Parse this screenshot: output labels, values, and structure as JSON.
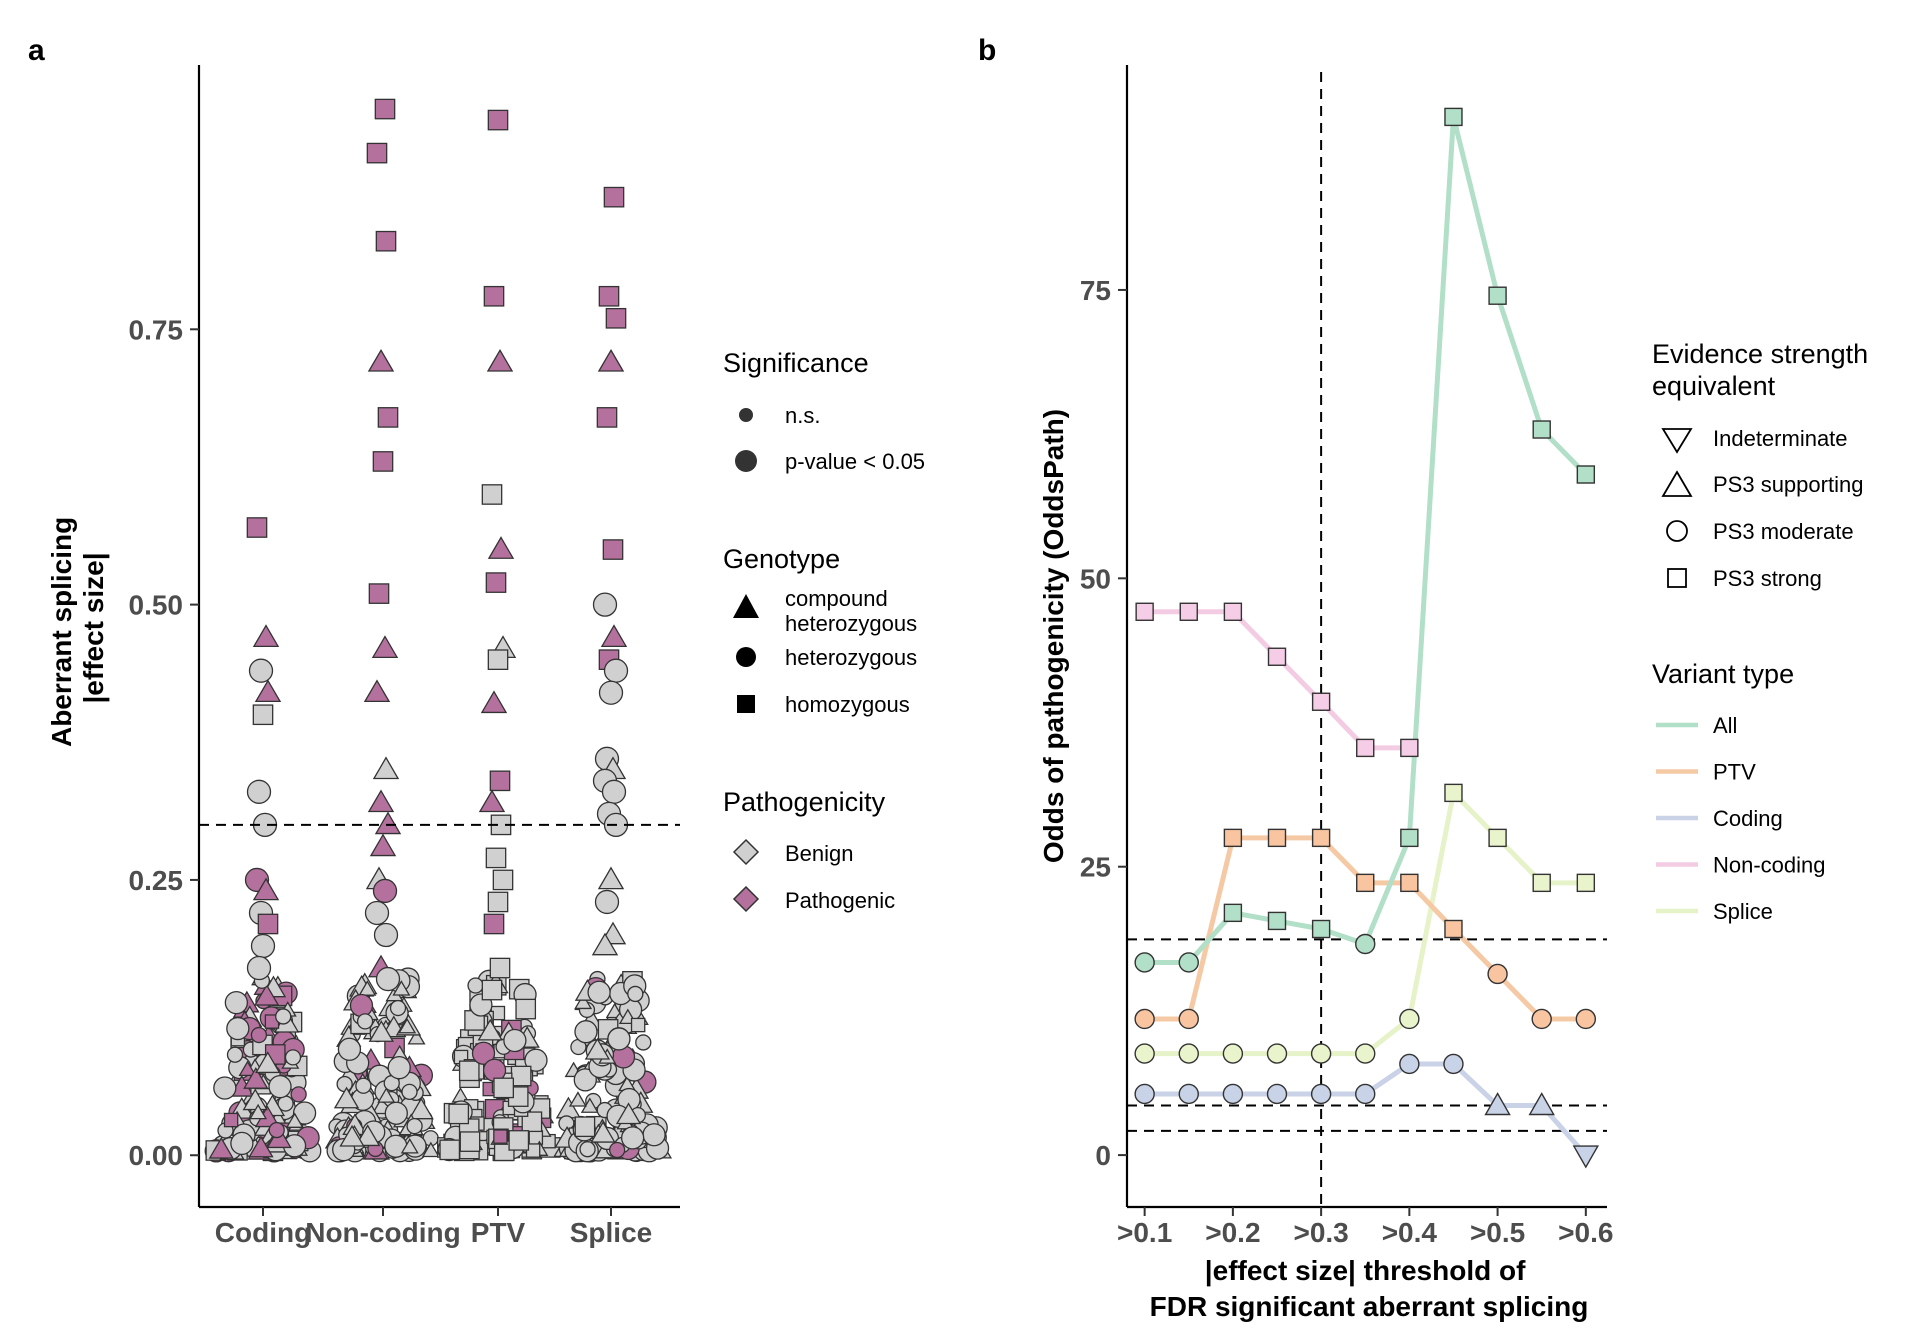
{
  "chart_data": [
    {
      "panel": "a",
      "type": "scatter",
      "ylabel": "Aberrant splicing\n|effect size|",
      "categories": [
        "Coding",
        "Non-coding",
        "PTV",
        "Splice"
      ],
      "yticks": [
        "0.00",
        "0.25",
        "0.50",
        "0.75"
      ],
      "ytick_values": [
        0,
        0.25,
        0.5,
        0.75
      ],
      "ylim": [
        -0.047,
        0.99
      ],
      "threshold": 0.3,
      "colors": {
        "benign": "#d0d0d0",
        "pathogenic": "#b5719e",
        "edge": "#333333"
      },
      "highlighted_points": [
        {
          "category": "Coding",
          "y": 0.57,
          "genotype": "homozygous",
          "pathogenicity": "Pathogenic"
        },
        {
          "category": "Coding",
          "y": 0.47,
          "genotype": "compound heterozygous",
          "pathogenicity": "Pathogenic"
        },
        {
          "category": "Coding",
          "y": 0.44,
          "genotype": "heterozygous",
          "pathogenicity": "Benign"
        },
        {
          "category": "Coding",
          "y": 0.42,
          "genotype": "compound heterozygous",
          "pathogenicity": "Pathogenic"
        },
        {
          "category": "Coding",
          "y": 0.4,
          "genotype": "homozygous",
          "pathogenicity": "Benign"
        },
        {
          "category": "Coding",
          "y": 0.33,
          "genotype": "heterozygous",
          "pathogenicity": "Benign"
        },
        {
          "category": "Coding",
          "y": 0.3,
          "genotype": "heterozygous",
          "pathogenicity": "Benign"
        },
        {
          "category": "Coding",
          "y": 0.25,
          "genotype": "heterozygous",
          "pathogenicity": "Pathogenic"
        },
        {
          "category": "Coding",
          "y": 0.24,
          "genotype": "compound heterozygous",
          "pathogenicity": "Pathogenic"
        },
        {
          "category": "Coding",
          "y": 0.22,
          "genotype": "heterozygous",
          "pathogenicity": "Benign"
        },
        {
          "category": "Coding",
          "y": 0.21,
          "genotype": "homozygous",
          "pathogenicity": "Pathogenic"
        },
        {
          "category": "Coding",
          "y": 0.19,
          "genotype": "heterozygous",
          "pathogenicity": "Benign"
        },
        {
          "category": "Coding",
          "y": 0.17,
          "genotype": "heterozygous",
          "pathogenicity": "Benign"
        },
        {
          "category": "Non-coding",
          "y": 0.95,
          "genotype": "homozygous",
          "pathogenicity": "Pathogenic"
        },
        {
          "category": "Non-coding",
          "y": 0.91,
          "genotype": "homozygous",
          "pathogenicity": "Pathogenic"
        },
        {
          "category": "Non-coding",
          "y": 0.83,
          "genotype": "homozygous",
          "pathogenicity": "Pathogenic"
        },
        {
          "category": "Non-coding",
          "y": 0.72,
          "genotype": "compound heterozygous",
          "pathogenicity": "Pathogenic"
        },
        {
          "category": "Non-coding",
          "y": 0.67,
          "genotype": "homozygous",
          "pathogenicity": "Pathogenic"
        },
        {
          "category": "Non-coding",
          "y": 0.63,
          "genotype": "homozygous",
          "pathogenicity": "Pathogenic"
        },
        {
          "category": "Non-coding",
          "y": 0.51,
          "genotype": "homozygous",
          "pathogenicity": "Pathogenic"
        },
        {
          "category": "Non-coding",
          "y": 0.46,
          "genotype": "compound heterozygous",
          "pathogenicity": "Pathogenic"
        },
        {
          "category": "Non-coding",
          "y": 0.42,
          "genotype": "compound heterozygous",
          "pathogenicity": "Pathogenic"
        },
        {
          "category": "Non-coding",
          "y": 0.35,
          "genotype": "compound heterozygous",
          "pathogenicity": "Benign"
        },
        {
          "category": "Non-coding",
          "y": 0.32,
          "genotype": "compound heterozygous",
          "pathogenicity": "Pathogenic"
        },
        {
          "category": "Non-coding",
          "y": 0.3,
          "genotype": "compound heterozygous",
          "pathogenicity": "Pathogenic"
        },
        {
          "category": "Non-coding",
          "y": 0.28,
          "genotype": "compound heterozygous",
          "pathogenicity": "Pathogenic"
        },
        {
          "category": "Non-coding",
          "y": 0.25,
          "genotype": "compound heterozygous",
          "pathogenicity": "Benign"
        },
        {
          "category": "Non-coding",
          "y": 0.24,
          "genotype": "heterozygous",
          "pathogenicity": "Pathogenic"
        },
        {
          "category": "Non-coding",
          "y": 0.22,
          "genotype": "heterozygous",
          "pathogenicity": "Benign"
        },
        {
          "category": "Non-coding",
          "y": 0.2,
          "genotype": "heterozygous",
          "pathogenicity": "Benign"
        },
        {
          "category": "Non-coding",
          "y": 0.17,
          "genotype": "compound heterozygous",
          "pathogenicity": "Pathogenic"
        },
        {
          "category": "Non-coding",
          "y": 0.16,
          "genotype": "heterozygous",
          "pathogenicity": "Benign"
        },
        {
          "category": "PTV",
          "y": 0.94,
          "genotype": "homozygous",
          "pathogenicity": "Pathogenic"
        },
        {
          "category": "PTV",
          "y": 0.78,
          "genotype": "homozygous",
          "pathogenicity": "Pathogenic"
        },
        {
          "category": "PTV",
          "y": 0.72,
          "genotype": "compound heterozygous",
          "pathogenicity": "Pathogenic"
        },
        {
          "category": "PTV",
          "y": 0.6,
          "genotype": "homozygous",
          "pathogenicity": "Benign"
        },
        {
          "category": "PTV",
          "y": 0.55,
          "genotype": "compound heterozygous",
          "pathogenicity": "Pathogenic"
        },
        {
          "category": "PTV",
          "y": 0.52,
          "genotype": "homozygous",
          "pathogenicity": "Pathogenic"
        },
        {
          "category": "PTV",
          "y": 0.46,
          "genotype": "compound heterozygous",
          "pathogenicity": "Benign"
        },
        {
          "category": "PTV",
          "y": 0.45,
          "genotype": "homozygous",
          "pathogenicity": "Benign"
        },
        {
          "category": "PTV",
          "y": 0.41,
          "genotype": "compound heterozygous",
          "pathogenicity": "Pathogenic"
        },
        {
          "category": "PTV",
          "y": 0.34,
          "genotype": "homozygous",
          "pathogenicity": "Pathogenic"
        },
        {
          "category": "PTV",
          "y": 0.32,
          "genotype": "compound heterozygous",
          "pathogenicity": "Pathogenic"
        },
        {
          "category": "PTV",
          "y": 0.3,
          "genotype": "homozygous",
          "pathogenicity": "Benign"
        },
        {
          "category": "PTV",
          "y": 0.27,
          "genotype": "homozygous",
          "pathogenicity": "Benign"
        },
        {
          "category": "PTV",
          "y": 0.25,
          "genotype": "homozygous",
          "pathogenicity": "Benign"
        },
        {
          "category": "PTV",
          "y": 0.23,
          "genotype": "homozygous",
          "pathogenicity": "Benign"
        },
        {
          "category": "PTV",
          "y": 0.21,
          "genotype": "homozygous",
          "pathogenicity": "Pathogenic"
        },
        {
          "category": "PTV",
          "y": 0.17,
          "genotype": "homozygous",
          "pathogenicity": "Benign"
        },
        {
          "category": "PTV",
          "y": 0.15,
          "genotype": "homozygous",
          "pathogenicity": "Benign"
        },
        {
          "category": "Splice",
          "y": 0.87,
          "genotype": "homozygous",
          "pathogenicity": "Pathogenic"
        },
        {
          "category": "Splice",
          "y": 0.78,
          "genotype": "homozygous",
          "pathogenicity": "Pathogenic"
        },
        {
          "category": "Splice",
          "y": 0.76,
          "genotype": "homozygous",
          "pathogenicity": "Pathogenic"
        },
        {
          "category": "Splice",
          "y": 0.72,
          "genotype": "compound heterozygous",
          "pathogenicity": "Pathogenic"
        },
        {
          "category": "Splice",
          "y": 0.67,
          "genotype": "homozygous",
          "pathogenicity": "Pathogenic"
        },
        {
          "category": "Splice",
          "y": 0.55,
          "genotype": "homozygous",
          "pathogenicity": "Pathogenic"
        },
        {
          "category": "Splice",
          "y": 0.5,
          "genotype": "heterozygous",
          "pathogenicity": "Benign"
        },
        {
          "category": "Splice",
          "y": 0.47,
          "genotype": "compound heterozygous",
          "pathogenicity": "Pathogenic"
        },
        {
          "category": "Splice",
          "y": 0.45,
          "genotype": "homozygous",
          "pathogenicity": "Pathogenic"
        },
        {
          "category": "Splice",
          "y": 0.44,
          "genotype": "heterozygous",
          "pathogenicity": "Benign"
        },
        {
          "category": "Splice",
          "y": 0.42,
          "genotype": "heterozygous",
          "pathogenicity": "Benign"
        },
        {
          "category": "Splice",
          "y": 0.36,
          "genotype": "heterozygous",
          "pathogenicity": "Benign"
        },
        {
          "category": "Splice",
          "y": 0.35,
          "genotype": "compound heterozygous",
          "pathogenicity": "Benign"
        },
        {
          "category": "Splice",
          "y": 0.34,
          "genotype": "heterozygous",
          "pathogenicity": "Benign"
        },
        {
          "category": "Splice",
          "y": 0.33,
          "genotype": "heterozygous",
          "pathogenicity": "Benign"
        },
        {
          "category": "Splice",
          "y": 0.31,
          "genotype": "heterozygous",
          "pathogenicity": "Benign"
        },
        {
          "category": "Splice",
          "y": 0.3,
          "genotype": "heterozygous",
          "pathogenicity": "Benign"
        },
        {
          "category": "Splice",
          "y": 0.25,
          "genotype": "compound heterozygous",
          "pathogenicity": "Benign"
        },
        {
          "category": "Splice",
          "y": 0.23,
          "genotype": "heterozygous",
          "pathogenicity": "Benign"
        },
        {
          "category": "Splice",
          "y": 0.2,
          "genotype": "compound heterozygous",
          "pathogenicity": "Benign"
        },
        {
          "category": "Splice",
          "y": 0.19,
          "genotype": "compound heterozygous",
          "pathogenicity": "Benign"
        }
      ],
      "legend": {
        "significance": {
          "title": "Significance",
          "items": [
            "n.s.",
            "p-value < 0.05"
          ]
        },
        "genotype": {
          "title": "Genotype",
          "items": [
            [
              "compound",
              "heterozygous"
            ],
            [
              "heterozygous"
            ],
            [
              "homozygous"
            ]
          ]
        },
        "pathogenicity": {
          "title": "Pathogenicity",
          "items": [
            "Benign",
            "Pathogenic"
          ]
        },
        "placement": "right"
      }
    },
    {
      "panel": "b",
      "type": "line",
      "xlabel": "|effect size| threshold of\nFDR significant aberrant splicing",
      "ylabel": "Odds of pathogenicity (OddsPath)",
      "x": [
        ">0.1",
        ">0.15",
        ">0.2",
        ">0.25",
        ">0.3",
        ">0.35",
        ">0.4",
        ">0.45",
        ">0.5",
        ">0.55",
        ">0.6"
      ],
      "x_values": [
        0.1,
        0.15,
        0.2,
        0.25,
        0.3,
        0.35,
        0.4,
        0.45,
        0.5,
        0.55,
        0.6
      ],
      "xticks": [
        ">0.1",
        ">0.2",
        ">0.3",
        ">0.4",
        ">0.5",
        ">0.6"
      ],
      "xtick_values": [
        0.1,
        0.2,
        0.3,
        0.4,
        0.5,
        0.6
      ],
      "yticks": [
        "0",
        "25",
        "50",
        "75"
      ],
      "ytick_values": [
        0,
        25,
        50,
        75
      ],
      "xlim": [
        0.08,
        0.624
      ],
      "ylim": [
        -4.5,
        94.5
      ],
      "vline": 0.3,
      "hlines": [
        2.1,
        4.3,
        18.7
      ],
      "series": [
        {
          "name": "All",
          "color": "#b2dfc7",
          "fill": "#b2dfc7",
          "values": [
            16.7,
            16.7,
            21.0,
            20.3,
            19.6,
            18.3,
            27.5,
            90.0,
            74.5,
            62.9,
            59.0
          ],
          "strength": [
            "PS3 moderate",
            "PS3 moderate",
            "PS3 strong",
            "PS3 strong",
            "PS3 strong",
            "PS3 moderate",
            "PS3 strong",
            "PS3 strong",
            "PS3 strong",
            "PS3 strong",
            "PS3 strong"
          ]
        },
        {
          "name": "PTV",
          "color": "#f6c9a5",
          "fill": "#f8c5a0",
          "values": [
            11.8,
            11.8,
            27.5,
            27.5,
            27.5,
            23.6,
            23.6,
            19.6,
            15.7,
            11.8,
            11.8
          ],
          "strength": [
            "PS3 moderate",
            "PS3 moderate",
            "PS3 strong",
            "PS3 strong",
            "PS3 strong",
            "PS3 strong",
            "PS3 strong",
            "PS3 strong",
            "PS3 moderate",
            "PS3 moderate",
            "PS3 moderate"
          ]
        },
        {
          "name": "Coding",
          "color": "#c9d2e6",
          "fill": "#c9d3e8",
          "values": [
            5.3,
            5.3,
            5.3,
            5.3,
            5.3,
            5.3,
            7.9,
            7.9,
            4.3,
            4.3,
            0.0
          ],
          "strength": [
            "PS3 moderate",
            "PS3 moderate",
            "PS3 moderate",
            "PS3 moderate",
            "PS3 moderate",
            "PS3 moderate",
            "PS3 moderate",
            "PS3 moderate",
            "PS3 supporting",
            "PS3 supporting",
            "Indeterminate"
          ]
        },
        {
          "name": "Non-coding",
          "color": "#f3cbe3",
          "fill": "#f6cde6",
          "values": [
            47.1,
            47.1,
            47.1,
            43.2,
            39.3,
            35.3,
            35.3,
            null,
            null,
            null,
            null
          ],
          "strength": [
            "PS3 strong",
            "PS3 strong",
            "PS3 strong",
            "PS3 strong",
            "PS3 strong",
            "PS3 strong",
            "PS3 strong",
            null,
            null,
            null,
            null
          ]
        },
        {
          "name": "Splice",
          "color": "#e6f2c8",
          "fill": "#eaf4cc",
          "values": [
            8.8,
            8.8,
            8.8,
            8.8,
            8.8,
            8.8,
            11.8,
            31.4,
            27.5,
            23.6,
            23.6
          ],
          "strength": [
            "PS3 moderate",
            "PS3 moderate",
            "PS3 moderate",
            "PS3 moderate",
            "PS3 moderate",
            "PS3 moderate",
            "PS3 moderate",
            "PS3 strong",
            "PS3 strong",
            "PS3 strong",
            "PS3 strong"
          ]
        }
      ],
      "legend": {
        "evidence": {
          "title": [
            "Evidence strength",
            "equivalent"
          ],
          "items": [
            "Indeterminate",
            "PS3 supporting",
            "PS3 moderate",
            "PS3 strong"
          ]
        },
        "variant": {
          "title": "Variant type",
          "items": [
            "All",
            "PTV",
            "Coding",
            "Non-coding",
            "Splice"
          ]
        },
        "placement": "right"
      }
    }
  ],
  "panel_labels": [
    "a",
    "b"
  ]
}
